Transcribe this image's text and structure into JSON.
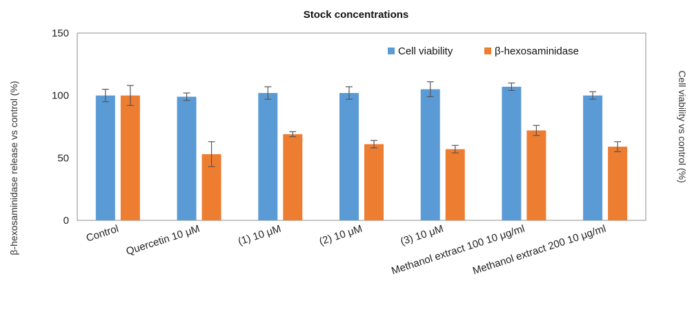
{
  "chart_data": {
    "type": "bar",
    "title": "Stock concentrations",
    "ylabel": "β-hexosaminidase release vs control (%)",
    "y2label": "Cell viability vs control (%)",
    "ylim": [
      0,
      150
    ],
    "yticks": [
      "0",
      "50",
      "100",
      "150"
    ],
    "grid": false,
    "legend_position": "top-right",
    "categories": [
      "Control",
      "Quercetin 10 μM",
      "(1) 10 μM",
      "(2) 10 μM",
      "(3) 10 μM",
      "Methanol extract 100 10 μg/ml",
      "Methanol extract 200 10 μg/ml"
    ],
    "series": [
      {
        "name": "Cell viability",
        "color": "#5b9bd5",
        "values": [
          100,
          99,
          102,
          102,
          105,
          107,
          100
        ],
        "errors": [
          5,
          3,
          5,
          5,
          6,
          3,
          3
        ]
      },
      {
        "name": "β-hexosaminidase",
        "color": "#ed7d31",
        "values": [
          100,
          53,
          69,
          61,
          57,
          72,
          59
        ],
        "errors": [
          8,
          10,
          2,
          3,
          3,
          4,
          4
        ]
      }
    ]
  }
}
